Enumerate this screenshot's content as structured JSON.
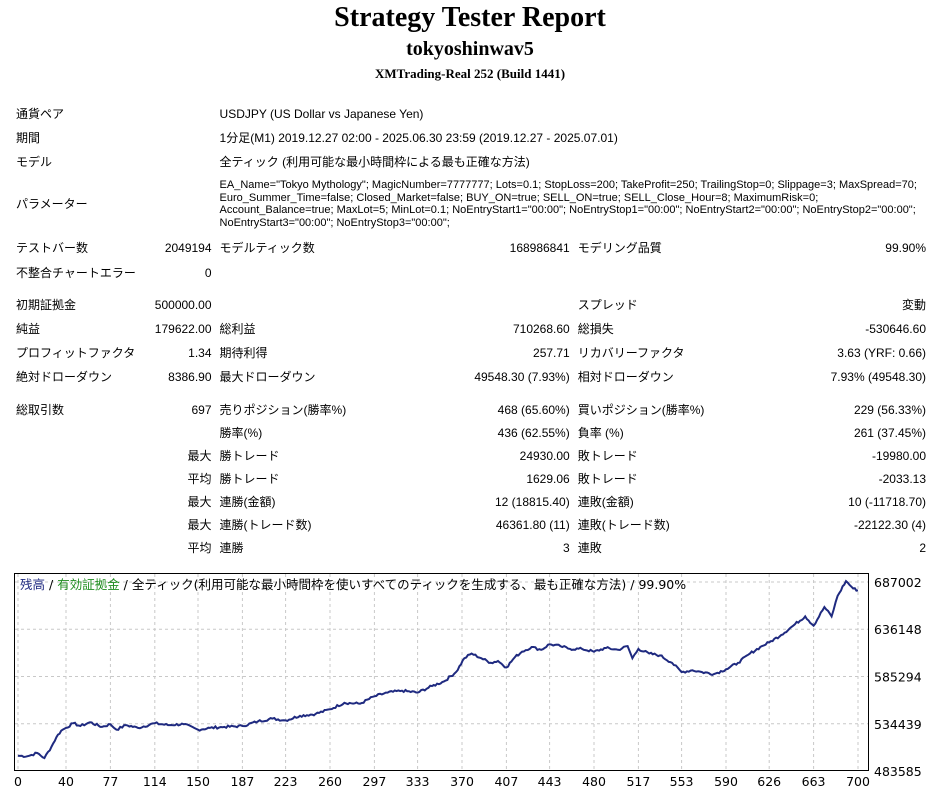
{
  "header": {
    "title": "Strategy Tester Report",
    "ea_name": "tokyoshinwav5",
    "server": "XMTrading-Real 252 (Build 1441)"
  },
  "settings": {
    "symbol_label": "通貨ペア",
    "symbol": "USDJPY (US Dollar vs Japanese Yen)",
    "period_label": "期間",
    "period": "1分足(M1) 2019.12.27 02:00 - 2025.06.30 23:59 (2019.12.27 - 2025.07.01)",
    "model_label": "モデル",
    "model": "全ティック (利用可能な最小時間枠による最も正確な方法)",
    "params_label": "パラメーター",
    "params": "EA_Name=\"Tokyo Mythology\"; MagicNumber=7777777; Lots=0.1; StopLoss=200; TakeProfit=250; TrailingStop=0; Slippage=3; MaxSpread=70; Euro_Summer_Time=false; Closed_Market=false; BUY_ON=true; SELL_ON=true; SELL_Close_Hour=8; MaximumRisk=0; Account_Balance=true; MaxLot=5; MinLot=0.1; NoEntryStart1=\"00:00\"; NoEntryStop1=\"00:00\"; NoEntryStart2=\"00:00\"; NoEntryStop2=\"00:00\"; NoEntryStart3=\"00:00\"; NoEntryStop3=\"00:00\";"
  },
  "test": {
    "bars_label": "テストバー数",
    "bars": "2049194",
    "ticks_label": "モデルティック数",
    "ticks": "168986841",
    "quality_label": "モデリング品質",
    "quality": "99.90%",
    "mismatch_label": "不整合チャートエラー",
    "mismatch": "0"
  },
  "results": {
    "deposit_label": "初期証拠金",
    "deposit": "500000.00",
    "spread_label": "スプレッド",
    "spread": "変動",
    "net_label": "純益",
    "net": "179622.00",
    "gross_profit_label": "総利益",
    "gross_profit": "710268.60",
    "gross_loss_label": "総損失",
    "gross_loss": "-530646.60",
    "pf_label": "プロフィットファクタ",
    "pf": "1.34",
    "expected_label": "期待利得",
    "expected": "257.71",
    "recovery_label": "リカバリーファクタ",
    "recovery": "3.63 (YRF: 0.66)",
    "abs_dd_label": "絶対ドローダウン",
    "abs_dd": "8386.90",
    "max_dd_label": "最大ドローダウン",
    "max_dd": "49548.30 (7.93%)",
    "rel_dd_label": "相対ドローダウン",
    "rel_dd": "7.93% (49548.30)"
  },
  "trades": {
    "total_label": "総取引数",
    "total": "697",
    "short_label": "売りポジション(勝率%)",
    "short": "468 (65.60%)",
    "long_label": "買いポジション(勝率%)",
    "long": "229 (56.33%)",
    "winrate_label": "勝率(%)",
    "winrate": "436 (62.55%)",
    "lossrate_label": "負率 (%)",
    "lossrate": "261 (37.45%)",
    "max_label": "最大",
    "avg_label": "平均",
    "win_trade_label": "勝トレード",
    "lose_trade_label": "敗トレード",
    "largest_win": "24930.00",
    "largest_loss": "-19980.00",
    "avg_win": "1629.06",
    "avg_loss": "-2033.13",
    "consec_win_amt_label": "連勝(金額)",
    "consec_win_amt": "12 (18815.40)",
    "consec_loss_amt_label": "連敗(金額)",
    "consec_loss_amt": "10 (-11718.70)",
    "consec_win_cnt_label": "連勝(トレード数)",
    "consec_win_cnt": "46361.80 (11)",
    "consec_loss_cnt_label": "連敗(トレード数)",
    "consec_loss_cnt": "-22122.30 (4)",
    "streak_win_label": "連勝",
    "streak_win": "3",
    "streak_loss_label": "連敗",
    "streak_loss": "2"
  },
  "chart_data": {
    "type": "line",
    "legend": {
      "balance": "残高",
      "equity": "有効証拠金",
      "rest": "全ティック(利用可能な最小時間枠を使いすべてのティックを生成する、最も正確な方法)",
      "quality": "99.90%"
    },
    "colors": {
      "line": "#1f2a80",
      "grid": "#c8c8c8",
      "equity": "#1f8c1f"
    },
    "x_ticks": [
      0,
      40,
      77,
      114,
      150,
      187,
      223,
      260,
      297,
      333,
      370,
      407,
      443,
      480,
      517,
      553,
      590,
      626,
      663,
      700
    ],
    "y_ticks": [
      483585,
      534439,
      585294,
      636148,
      687002
    ],
    "xlim": [
      0,
      705
    ],
    "ylim": [
      483585,
      687002
    ],
    "x": [
      0,
      8,
      16,
      22,
      28,
      32,
      36,
      40,
      46,
      52,
      60,
      70,
      77,
      82,
      90,
      100,
      114,
      125,
      138,
      150,
      160,
      172,
      187,
      200,
      212,
      223,
      235,
      248,
      260,
      272,
      285,
      297,
      308,
      320,
      333,
      345,
      355,
      365,
      372,
      378,
      386,
      394,
      400,
      407,
      414,
      420,
      428,
      436,
      443,
      452,
      460,
      470,
      480,
      490,
      500,
      508,
      512,
      517,
      526,
      535,
      545,
      553,
      562,
      570,
      580,
      590,
      600,
      610,
      620,
      626,
      636,
      646,
      656,
      663,
      672,
      678,
      683,
      690,
      696,
      700
    ],
    "y": [
      500000,
      499500,
      503000,
      497500,
      510000,
      520000,
      527000,
      530000,
      535000,
      532000,
      536000,
      531000,
      534000,
      528000,
      533000,
      530000,
      535000,
      533000,
      534000,
      528000,
      530000,
      531000,
      532000,
      537000,
      540000,
      538000,
      543000,
      545000,
      550000,
      557000,
      556000,
      564000,
      568000,
      570000,
      568000,
      575000,
      580000,
      590000,
      605000,
      610000,
      605000,
      600000,
      602000,
      595000,
      606000,
      612000,
      617000,
      614000,
      620000,
      618000,
      615000,
      615000,
      612000,
      616000,
      614000,
      618000,
      605000,
      615000,
      610000,
      608000,
      600000,
      590000,
      592000,
      590000,
      588000,
      593000,
      600000,
      610000,
      618000,
      622000,
      630000,
      640000,
      650000,
      640000,
      660000,
      650000,
      672000,
      688000,
      680000,
      678000
    ]
  }
}
